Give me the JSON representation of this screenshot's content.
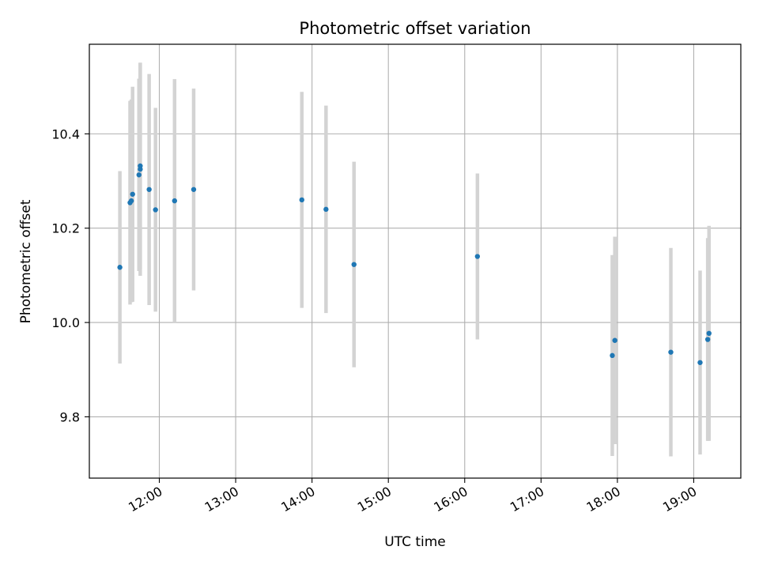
{
  "chart_data": {
    "type": "scatter",
    "title": "Photometric offset variation",
    "xlabel": "UTC time",
    "ylabel": "Photometric offset",
    "x_tick_labels": [
      "12:00",
      "13:00",
      "14:00",
      "15:00",
      "16:00",
      "17:00",
      "18:00",
      "19:00"
    ],
    "y_tick_labels": [
      "9.8",
      "10.0",
      "10.2",
      "10.4"
    ],
    "xlim": [
      "11:05",
      "19:37"
    ],
    "ylim": [
      9.67,
      10.59
    ],
    "grid": true,
    "colors": {
      "point": "#1f77b4",
      "errorbar": "#d3d3d3",
      "grid": "#b0b0b0"
    },
    "points": [
      {
        "x": "11:29",
        "y": 10.117,
        "err": 0.204
      },
      {
        "x": "11:37",
        "y": 10.254,
        "err": 0.216
      },
      {
        "x": "11:38",
        "y": 10.258,
        "err": 0.215
      },
      {
        "x": "11:39",
        "y": 10.272,
        "err": 0.228
      },
      {
        "x": "11:44",
        "y": 10.313,
        "err": 0.204
      },
      {
        "x": "11:45",
        "y": 10.325,
        "err": 0.226
      },
      {
        "x": "11:45",
        "y": 10.332,
        "err": 0.218
      },
      {
        "x": "11:52",
        "y": 10.282,
        "err": 0.245
      },
      {
        "x": "11:57",
        "y": 10.239,
        "err": 0.216
      },
      {
        "x": "12:12",
        "y": 10.258,
        "err": 0.258
      },
      {
        "x": "12:27",
        "y": 10.282,
        "err": 0.214
      },
      {
        "x": "13:52",
        "y": 10.26,
        "err": 0.229
      },
      {
        "x": "14:11",
        "y": 10.24,
        "err": 0.22
      },
      {
        "x": "14:33",
        "y": 10.123,
        "err": 0.218
      },
      {
        "x": "16:10",
        "y": 10.14,
        "err": 0.176
      },
      {
        "x": "17:56",
        "y": 9.93,
        "err": 0.213
      },
      {
        "x": "17:58",
        "y": 9.962,
        "err": 0.22
      },
      {
        "x": "18:42",
        "y": 9.937,
        "err": 0.221
      },
      {
        "x": "19:05",
        "y": 9.915,
        "err": 0.195
      },
      {
        "x": "19:11",
        "y": 9.964,
        "err": 0.215
      },
      {
        "x": "19:12",
        "y": 9.977,
        "err": 0.228
      }
    ]
  }
}
